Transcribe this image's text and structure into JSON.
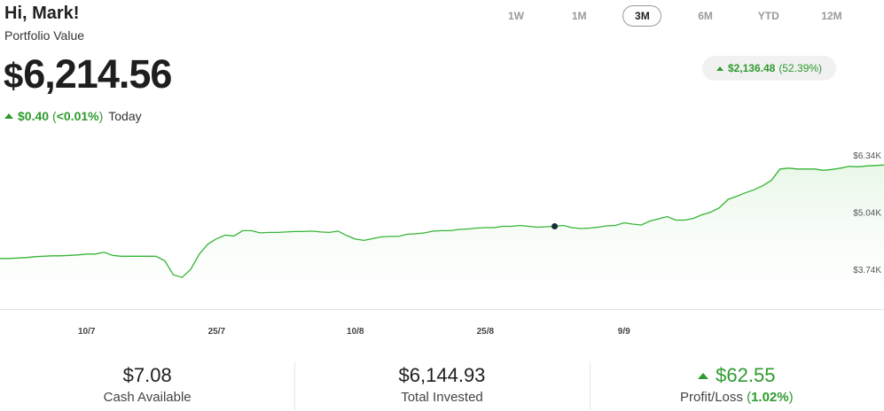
{
  "header": {
    "greeting": "Hi, Mark!",
    "subtitle": "Portfolio Value",
    "currency_symbol": "$",
    "value": "6,214.56",
    "today_change": "$0.40",
    "today_pct_open": "(",
    "today_pct": "<0.01%",
    "today_pct_close": ")",
    "today_label": "Today"
  },
  "ranges": [
    {
      "label": "1W",
      "active": false
    },
    {
      "label": "1M",
      "active": false
    },
    {
      "label": "3M",
      "active": true
    },
    {
      "label": "6M",
      "active": false
    },
    {
      "label": "YTD",
      "active": false
    },
    {
      "label": "12M",
      "active": false
    }
  ],
  "gain": {
    "amount": "$2,136.48",
    "pct": "(52.39%)"
  },
  "colors": {
    "positive": "#2e9b2e",
    "line": "#35b535",
    "marker": "#1c2b3a"
  },
  "chart_data": {
    "type": "area",
    "x_tick_labels": [
      "10/7",
      "25/7",
      "10/8",
      "25/8",
      "9/9"
    ],
    "x_tick_index": [
      10,
      25,
      41,
      56,
      72
    ],
    "y_tick_labels": [
      "$6.34K",
      "$5.04K",
      "$3.74K"
    ],
    "y_tick_values": [
      6340,
      5040,
      3740
    ],
    "ylim": [
      3000,
      7000
    ],
    "marker_index": 64,
    "values": [
      4150,
      4150,
      4160,
      4170,
      4190,
      4200,
      4210,
      4210,
      4220,
      4230,
      4250,
      4250,
      4290,
      4220,
      4200,
      4200,
      4200,
      4200,
      4200,
      4100,
      3780,
      3720,
      3900,
      4250,
      4480,
      4600,
      4680,
      4660,
      4780,
      4780,
      4730,
      4740,
      4740,
      4750,
      4760,
      4760,
      4770,
      4750,
      4740,
      4770,
      4670,
      4590,
      4560,
      4600,
      4640,
      4650,
      4650,
      4700,
      4710,
      4730,
      4770,
      4780,
      4780,
      4810,
      4820,
      4840,
      4850,
      4850,
      4880,
      4880,
      4900,
      4880,
      4860,
      4870,
      4880,
      4900,
      4850,
      4830,
      4840,
      4860,
      4890,
      4900,
      4960,
      4930,
      4910,
      5000,
      5050,
      5100,
      5020,
      5020,
      5060,
      5140,
      5200,
      5300,
      5490,
      5560,
      5640,
      5710,
      5800,
      5920,
      6180,
      6200,
      6180,
      6180,
      6180,
      6150,
      6170,
      6200,
      6240,
      6230,
      6250,
      6260,
      6270
    ]
  },
  "stats": [
    {
      "value": "$7.08",
      "label": "Cash Available"
    },
    {
      "value": "$6,144.93",
      "label": "Total Invested"
    },
    {
      "value": "$62.55",
      "label_main": "Profit/Loss",
      "label_pct_open": "(",
      "label_pct": "1.02%",
      "label_pct_close": ")"
    }
  ]
}
